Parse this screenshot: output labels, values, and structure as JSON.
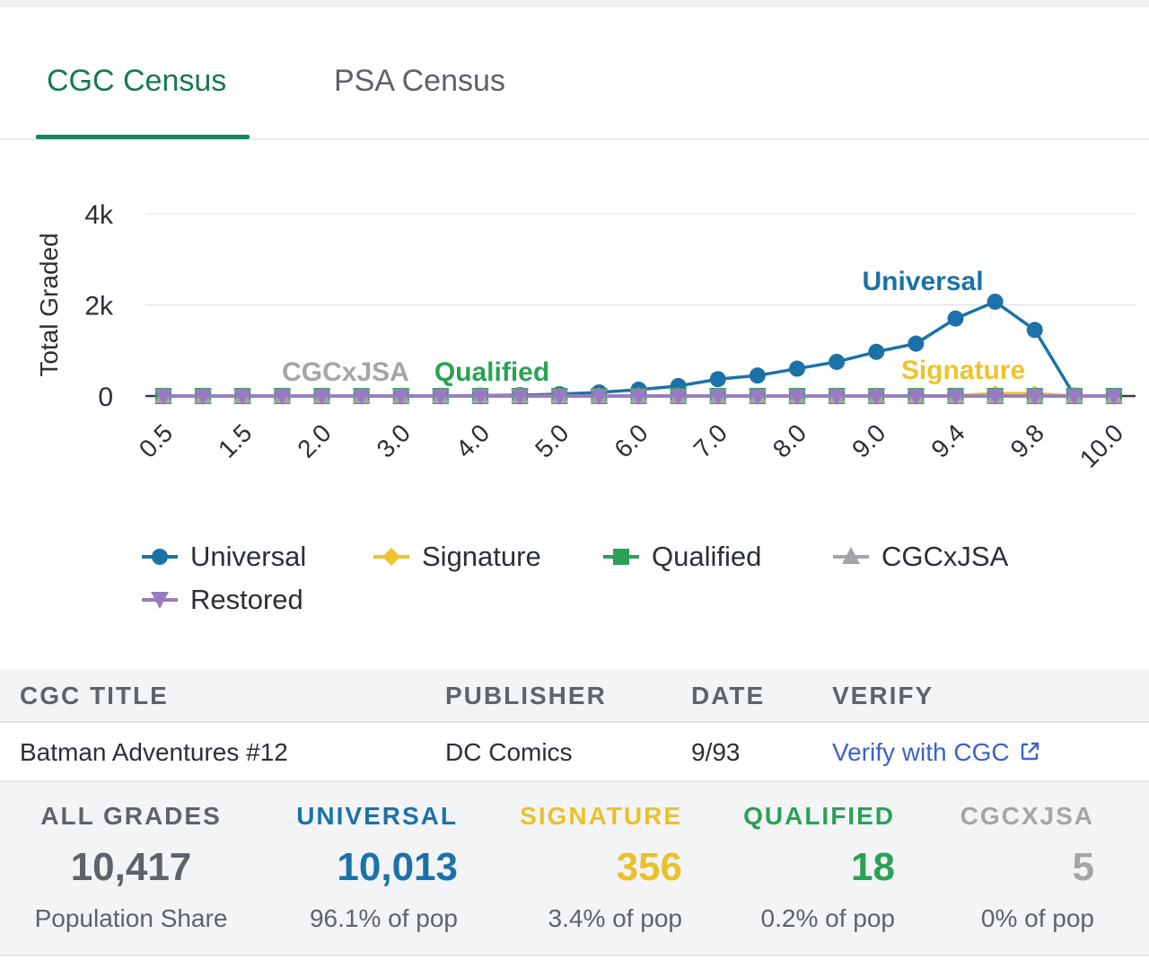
{
  "tabs": [
    {
      "label": "CGC Census",
      "active": true
    },
    {
      "label": "PSA Census",
      "active": false
    }
  ],
  "colors": {
    "accent": "#16885a",
    "universal": "#1b72a8",
    "signature": "#f0c22c",
    "qualified": "#2aa154",
    "cgcxjsa": "#a3a5a8",
    "restored": "#9a7ac2",
    "link": "#3a62c9"
  },
  "chart_data": {
    "type": "line",
    "ylabel": "Total Graded",
    "xlabel": "",
    "ylim": [
      0,
      4000
    ],
    "ytick_labels": [
      "0",
      "2k",
      "4k"
    ],
    "yticks": [
      0,
      2000,
      4000
    ],
    "categories": [
      "0.5",
      "1.0",
      "1.5",
      "1.8",
      "2.0",
      "2.5",
      "3.0",
      "3.5",
      "4.0",
      "4.5",
      "5.0",
      "5.5",
      "6.0",
      "6.5",
      "7.0",
      "7.5",
      "8.0",
      "8.5",
      "9.0",
      "9.2",
      "9.4",
      "9.6",
      "9.8",
      "9.9",
      "10.0"
    ],
    "xtick_labels": [
      "0.5",
      "1.5",
      "2.0",
      "3.0",
      "4.0",
      "5.0",
      "6.0",
      "7.0",
      "8.0",
      "9.0",
      "9.4",
      "9.8",
      "10.0"
    ],
    "series": [
      {
        "name": "Universal",
        "marker": "circle",
        "values": [
          0,
          0,
          0,
          0,
          0,
          0,
          0,
          5,
          10,
          20,
          40,
          80,
          140,
          220,
          370,
          450,
          600,
          750,
          970,
          1150,
          1700,
          2070,
          1450,
          10,
          0
        ]
      },
      {
        "name": "Signature",
        "marker": "diamond",
        "values": [
          0,
          0,
          0,
          0,
          0,
          0,
          0,
          0,
          0,
          0,
          0,
          0,
          0,
          0,
          0,
          0,
          0,
          0,
          2,
          5,
          10,
          60,
          60,
          0,
          0
        ]
      },
      {
        "name": "Qualified",
        "marker": "square",
        "values": [
          0,
          0,
          0,
          0,
          0,
          0,
          0,
          0,
          0,
          0,
          0,
          0,
          0,
          0,
          0,
          0,
          0,
          0,
          0,
          0,
          1,
          1,
          1,
          0,
          0
        ]
      },
      {
        "name": "CGCxJSA",
        "marker": "triangle",
        "values": [
          0,
          0,
          0,
          0,
          0,
          0,
          0,
          0,
          0,
          0,
          0,
          0,
          0,
          0,
          0,
          0,
          0,
          0,
          0,
          0,
          0,
          0,
          0,
          0,
          0
        ]
      },
      {
        "name": "Restored",
        "marker": "triangle-down",
        "values": [
          0,
          0,
          0,
          0,
          0,
          0,
          0,
          0,
          0,
          0,
          0,
          0,
          0,
          0,
          0,
          0,
          0,
          0,
          0,
          0,
          0,
          0,
          0,
          0,
          0
        ]
      }
    ],
    "annotations": [
      "Universal",
      "Signature",
      "Qualified",
      "CGCxJSA"
    ],
    "grid": true,
    "legend_placement": "bottom-left"
  },
  "info_table": {
    "headers": [
      "CGC TITLE",
      "PUBLISHER",
      "DATE",
      "VERIFY"
    ],
    "title": "Batman Adventures #12",
    "publisher": "DC Comics",
    "date": "9/93",
    "verify_label": "Verify with CGC"
  },
  "stats": [
    {
      "label": "ALL GRADES",
      "value": "10,417",
      "share": "Population Share",
      "color": "#5d636b"
    },
    {
      "label": "UNIVERSAL",
      "value": "10,013",
      "share": "96.1% of pop",
      "color": "#1b72a8"
    },
    {
      "label": "SIGNATURE",
      "value": "356",
      "share": "3.4% of pop",
      "color": "#eac12a"
    },
    {
      "label": "QUALIFIED",
      "value": "18",
      "share": "0.2% of pop",
      "color": "#2aa154"
    },
    {
      "label": "CGCXJSA",
      "value": "5",
      "share": "0% of pop",
      "color": "#a3a5a8"
    }
  ]
}
